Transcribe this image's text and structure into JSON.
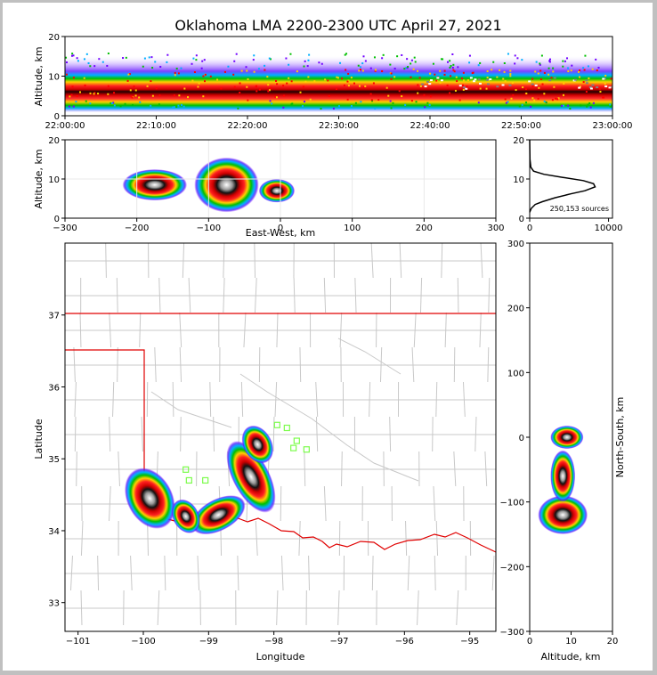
{
  "title": "Oklahoma LMA 2200-2300 UTC April 27, 2021",
  "chart_data": [
    {
      "type": "heatmap",
      "panel": "time-altitude",
      "ylabel": "Altitude, km",
      "xlabel": "",
      "ylim": [
        0,
        20
      ],
      "yticks": [
        "0",
        "10",
        "20"
      ],
      "xticks": [
        "22:00:00",
        "22:10:00",
        "22:20:00",
        "22:30:00",
        "22:40:00",
        "22:50:00",
        "23:00:00"
      ],
      "density": {
        "core_altitude": [
          5,
          10
        ],
        "spread_altitude": [
          2,
          15
        ]
      }
    },
    {
      "type": "heatmap",
      "panel": "east-west-altitude",
      "xlabel": "East-West, km",
      "ylabel": "Altitude, km",
      "xlim": [
        -300,
        300
      ],
      "ylim": [
        0,
        20
      ],
      "xticks": [
        "−300",
        "−200",
        "−100",
        "0",
        "100",
        "200",
        "300"
      ],
      "yticks": [
        "0",
        "10",
        "20"
      ],
      "clusters": [
        {
          "x": -175,
          "z": 8.5,
          "rx": 45,
          "rz": 4
        },
        {
          "x": -75,
          "z": 8.5,
          "rx": 45,
          "rz": 7
        },
        {
          "x": -5,
          "z": 7,
          "rx": 25,
          "rz": 3
        }
      ]
    },
    {
      "type": "line",
      "panel": "altitude-histogram",
      "annotation": "250,153 sources",
      "xlim": [
        0,
        10500
      ],
      "ylim": [
        0,
        20
      ],
      "xticks": [
        "0",
        "10000"
      ],
      "yticks": [
        "0",
        "10",
        "20"
      ],
      "points": [
        [
          0,
          1.5
        ],
        [
          200,
          2.5
        ],
        [
          700,
          3.5
        ],
        [
          1600,
          4.2
        ],
        [
          3200,
          5.2
        ],
        [
          5200,
          6.2
        ],
        [
          7000,
          7.0
        ],
        [
          8300,
          8.0
        ],
        [
          8100,
          8.8
        ],
        [
          6800,
          9.6
        ],
        [
          4200,
          10.4
        ],
        [
          1800,
          11.2
        ],
        [
          500,
          12.0
        ],
        [
          150,
          13.0
        ],
        [
          30,
          15.0
        ],
        [
          0,
          20
        ]
      ]
    },
    {
      "type": "heatmap",
      "panel": "plan-view",
      "xlabel": "Longitude",
      "ylabel": "Latitude",
      "xlim": [
        -101.2,
        -94.6
      ],
      "ylim": [
        32.6,
        38.0
      ],
      "xticks": [
        "−101",
        "−100",
        "−99",
        "−98",
        "−97",
        "−96",
        "−95"
      ],
      "yticks": [
        "33",
        "34",
        "35",
        "36",
        "37"
      ],
      "clusters": [
        {
          "lon": -98.85,
          "lat": 34.22,
          "rx": 0.45,
          "ry": 0.22
        },
        {
          "lon": -98.35,
          "lat": 34.75,
          "rx": 0.28,
          "ry": 0.55
        },
        {
          "lon": -98.25,
          "lat": 35.2,
          "rx": 0.22,
          "ry": 0.28
        },
        {
          "lon": -99.9,
          "lat": 34.45,
          "rx": 0.35,
          "ry": 0.45
        },
        {
          "lon": -99.35,
          "lat": 34.2,
          "rx": 0.2,
          "ry": 0.25
        }
      ],
      "stations": [
        [
          -97.95,
          35.47
        ],
        [
          -97.8,
          35.43
        ],
        [
          -97.65,
          35.25
        ],
        [
          -97.7,
          35.15
        ],
        [
          -97.5,
          35.13
        ],
        [
          -99.35,
          34.85
        ],
        [
          -99.3,
          34.7
        ],
        [
          -99.05,
          34.7
        ]
      ]
    },
    {
      "type": "heatmap",
      "panel": "altitude-north-south",
      "xlabel": "Altitude, km",
      "ylabel": "North-South, km",
      "xlim": [
        0,
        20
      ],
      "ylim": [
        -300,
        300
      ],
      "xticks": [
        "0",
        "10",
        "20"
      ],
      "yticks": [
        "−300",
        "−200",
        "−100",
        "0",
        "100",
        "200",
        "300"
      ],
      "clusters": [
        {
          "z": 8,
          "y": -120,
          "rz": 6,
          "ry": 30
        },
        {
          "z": 8,
          "y": -60,
          "rz": 3,
          "ry": 40
        },
        {
          "z": 9,
          "y": 0,
          "rz": 4,
          "ry": 18
        }
      ]
    }
  ]
}
